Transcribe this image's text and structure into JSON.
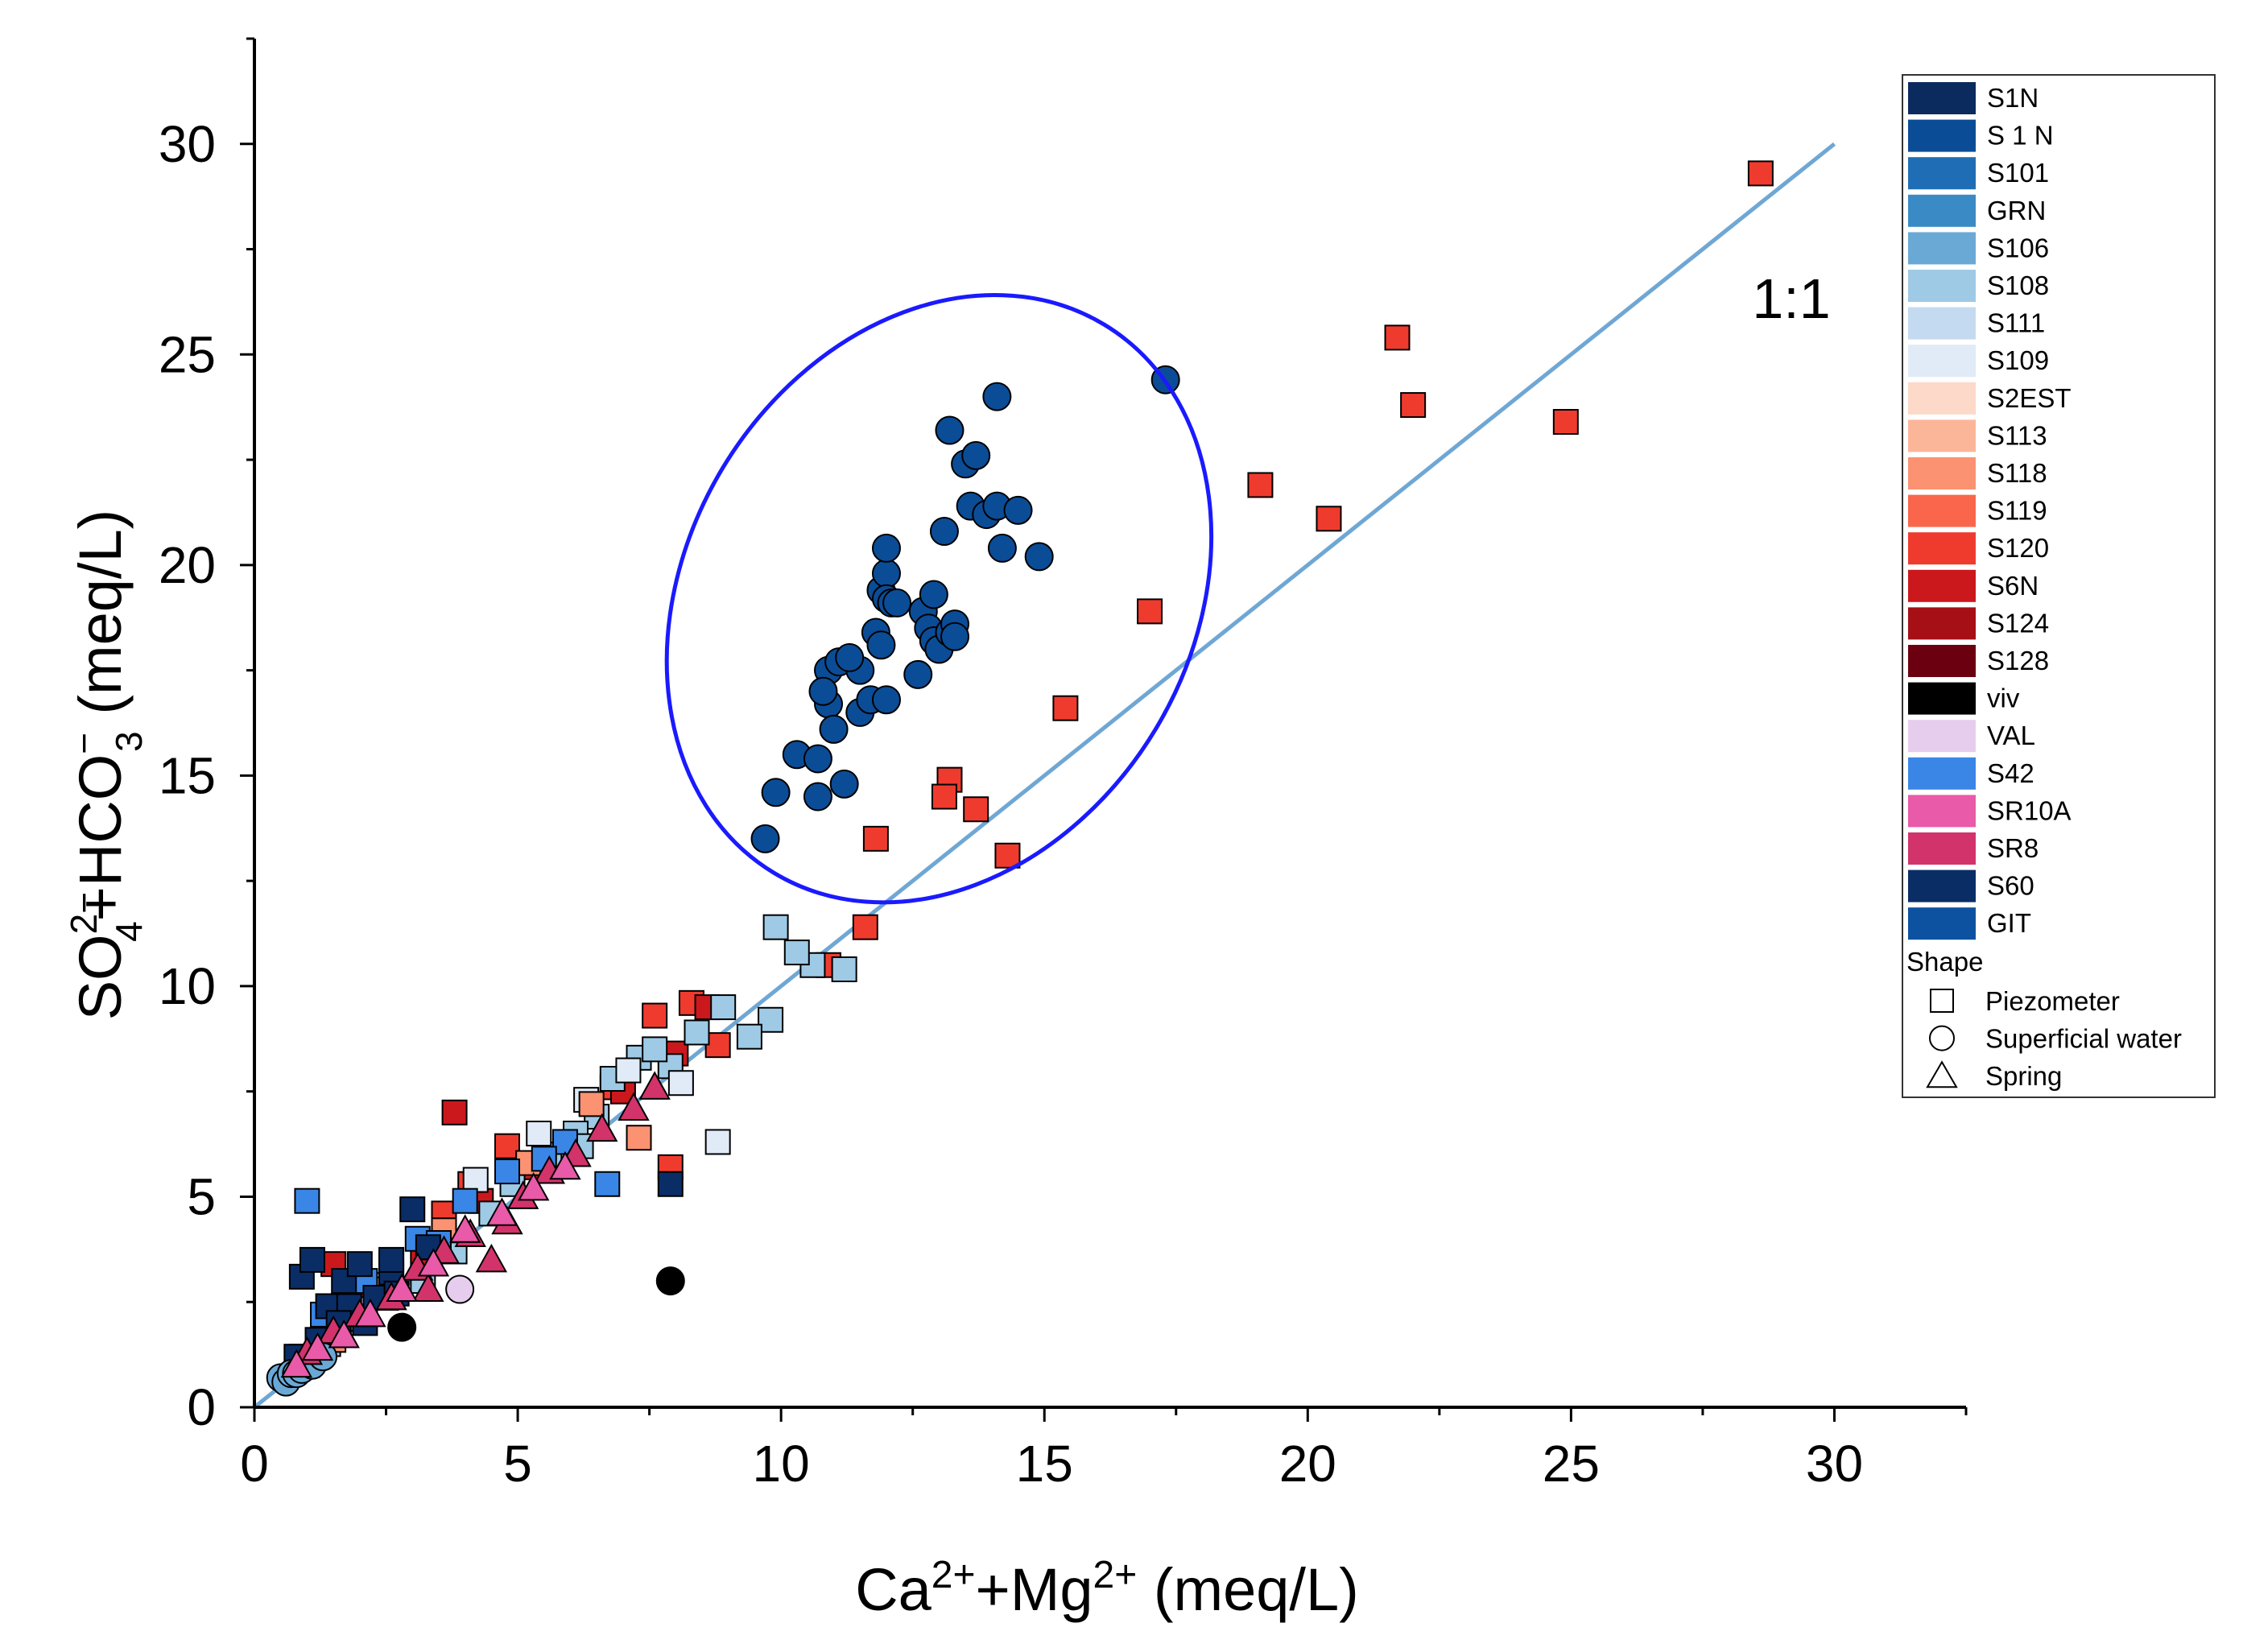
{
  "chart_data": {
    "type": "scatter",
    "xlabel": "Ca2++Mg2+ (meq/L)",
    "xlabel_parts": {
      "a": "Ca",
      "a_sup": "2+",
      "b": "+Mg",
      "b_sup": "2+",
      "unit": " (meq/L)"
    },
    "ylabel": "SO42−+HCO3− (meq/L)",
    "ylabel_parts": {
      "a": "SO",
      "a_sup": "2−",
      "a_sub": "4",
      "b": "+HCO",
      "b_sup": "−",
      "b_sub": "3",
      "unit": " (meq/L)"
    },
    "xlim": [
      0,
      32.5
    ],
    "ylim": [
      0,
      32.5
    ],
    "xticks": [
      "0",
      "5",
      "10",
      "15",
      "20",
      "25",
      "30"
    ],
    "yticks": [
      "0",
      "5",
      "10",
      "15",
      "20",
      "25",
      "30"
    ],
    "annotation_ratio": "1:1",
    "reference_line": {
      "x": [
        0,
        30
      ],
      "y": [
        0,
        30
      ],
      "color": "#6fa7d4"
    },
    "ellipse_highlight": {
      "cx": 13.0,
      "cy": 19.2,
      "rx": 4.8,
      "ry": 7.6,
      "angle_deg": 31,
      "color": "#1a1aff"
    },
    "legend": {
      "placement": "right",
      "items": [
        {
          "label": "S1N",
          "color": "#0b2a5e"
        },
        {
          "label": "S 1 N",
          "color": "#0b4c96"
        },
        {
          "label": "S101",
          "color": "#1f6eb5"
        },
        {
          "label": "GRN",
          "color": "#3a8ac6"
        },
        {
          "label": "S106",
          "color": "#6aa9d6"
        },
        {
          "label": "S108",
          "color": "#9ecae5"
        },
        {
          "label": "S111",
          "color": "#c4daf0"
        },
        {
          "label": "S109",
          "color": "#e0ebf7"
        },
        {
          "label": "S2EST",
          "color": "#fcd9c8"
        },
        {
          "label": "S113",
          "color": "#fbb69a"
        },
        {
          "label": "S118",
          "color": "#fb9272"
        },
        {
          "label": "S119",
          "color": "#f9664b"
        },
        {
          "label": "S120",
          "color": "#ef3b2e"
        },
        {
          "label": "S6N",
          "color": "#cb181d"
        },
        {
          "label": "S124",
          "color": "#a50f15"
        },
        {
          "label": "S128",
          "color": "#6b0010"
        },
        {
          "label": "viv",
          "color": "#000000"
        },
        {
          "label": "VAL",
          "color": "#e6cdee"
        },
        {
          "label": "S42",
          "color": "#3a86e6"
        },
        {
          "label": "SR10A",
          "color": "#e95aa8"
        },
        {
          "label": "SR8",
          "color": "#d2336a"
        },
        {
          "label": "S60",
          "color": "#0a2d66"
        },
        {
          "label": "GIT",
          "color": "#0d52a0"
        }
      ],
      "shape_title": "Shape",
      "shapes": [
        {
          "label": "Piezometer",
          "shape": "square"
        },
        {
          "label": "Superficial water",
          "shape": "circle"
        },
        {
          "label": "Spring",
          "shape": "triangle"
        }
      ]
    },
    "series": [
      {
        "group": "S1N",
        "shape": "circle",
        "color": "#0b4c96",
        "x": [
          9.7,
          9.9,
          10.3,
          10.7,
          10.7,
          10.9,
          10.9,
          11.0,
          11.2,
          11.1,
          11.5,
          11.5,
          11.7,
          11.8,
          11.9,
          11.9,
          12.0,
          12.0,
          12.0,
          12.0,
          12.1,
          12.2,
          12.6,
          12.7,
          12.8,
          12.9,
          12.9,
          13.0,
          13.1,
          13.2,
          13.2,
          13.3,
          13.3,
          13.5,
          13.6,
          13.7,
          13.9,
          14.1,
          14.1,
          14.2,
          14.5,
          14.9,
          17.3,
          10.8,
          11.3
        ],
        "y": [
          13.5,
          14.6,
          15.5,
          14.5,
          15.4,
          16.7,
          17.5,
          16.1,
          14.8,
          17.7,
          16.5,
          17.5,
          16.8,
          18.4,
          18.1,
          19.4,
          16.8,
          19.8,
          20.4,
          19.2,
          19.1,
          19.1,
          17.4,
          18.9,
          18.5,
          19.3,
          18.2,
          18.0,
          20.8,
          18.4,
          23.2,
          18.6,
          18.3,
          22.4,
          21.4,
          22.6,
          21.2,
          24.0,
          21.4,
          20.4,
          21.3,
          20.2,
          24.4,
          17.0,
          17.8
        ]
      },
      {
        "group": "S120",
        "shape": "square",
        "color": "#ef3b2e",
        "x": [
          28.6,
          21.7,
          22.0,
          24.9,
          19.1,
          20.4,
          17.0,
          15.4,
          13.2,
          13.1,
          13.7,
          11.8,
          14.3,
          11.6,
          10.9,
          8.8,
          8.3,
          7.9,
          7.6,
          6.8,
          4.8,
          4.1,
          3.6
        ],
        "y": [
          29.3,
          25.4,
          23.8,
          23.4,
          21.9,
          21.1,
          18.9,
          16.6,
          14.9,
          14.5,
          14.2,
          13.5,
          13.1,
          11.4,
          10.5,
          8.6,
          9.6,
          5.7,
          9.3,
          7.6,
          6.2,
          5.3,
          4.6
        ]
      },
      {
        "group": "S6N",
        "shape": "square",
        "color": "#cb181d",
        "x": [
          3.8,
          2.6,
          3.2,
          1.5,
          2.2,
          4.3,
          5.2,
          7.0,
          8.0,
          8.6
        ],
        "y": [
          7.0,
          3.4,
          3.6,
          3.4,
          2.9,
          4.9,
          5.7,
          7.5,
          8.4,
          9.5
        ]
      },
      {
        "group": "S108",
        "shape": "square",
        "color": "#9ecae5",
        "x": [
          9.9,
          10.6,
          11.2,
          9.8,
          9.4,
          8.9,
          8.4,
          7.9,
          7.3,
          6.8,
          6.5,
          6.1,
          5.6,
          4.9,
          4.5,
          3.8,
          3.2,
          2.5,
          2.0,
          1.4,
          0.9,
          10.3,
          7.6,
          6.2
        ],
        "y": [
          11.4,
          10.5,
          10.4,
          9.2,
          8.8,
          9.5,
          8.9,
          8.1,
          8.3,
          7.8,
          6.9,
          6.5,
          6.0,
          5.3,
          4.6,
          3.7,
          3.0,
          2.6,
          2.1,
          1.5,
          1.2,
          10.8,
          8.5,
          6.2
        ]
      },
      {
        "group": "S109",
        "shape": "square",
        "color": "#e0ebf7",
        "x": [
          8.8,
          8.1,
          7.1,
          6.3,
          5.4,
          4.2,
          3.3,
          2.4,
          1.6
        ],
        "y": [
          6.3,
          7.7,
          8.0,
          7.3,
          6.5,
          5.4,
          3.8,
          2.9,
          1.8
        ]
      },
      {
        "group": "S118",
        "shape": "square",
        "color": "#fb9272",
        "x": [
          7.3,
          6.4,
          5.2,
          3.6,
          2.3,
          1.5
        ],
        "y": [
          6.4,
          7.2,
          5.8,
          4.2,
          2.8,
          1.6
        ]
      },
      {
        "group": "S42",
        "shape": "square",
        "color": "#3a86e6",
        "x": [
          1.0,
          6.7,
          5.9,
          4.8,
          4.0,
          3.1,
          2.1,
          1.3,
          5.5,
          3.5
        ],
        "y": [
          4.9,
          5.3,
          6.3,
          5.6,
          4.9,
          4.0,
          3.0,
          2.2,
          5.9,
          3.9
        ]
      },
      {
        "group": "S60",
        "shape": "square",
        "color": "#0a2d66",
        "x": [
          0.9,
          1.1,
          1.4,
          1.7,
          2.0,
          2.3,
          2.6,
          3.0,
          1.8,
          2.6,
          2.1,
          0.8,
          1.2,
          1.6,
          2.7,
          3.3,
          1.0,
          7.9
        ],
        "y": [
          3.1,
          3.5,
          2.4,
          3.0,
          3.4,
          2.6,
          3.2,
          4.7,
          2.4,
          3.5,
          2.0,
          1.2,
          1.6,
          2.0,
          2.7,
          3.8,
          1.0,
          5.3
        ]
      },
      {
        "group": "S106",
        "shape": "circle",
        "color": "#6aa9d6",
        "x": [
          0.5,
          0.6,
          0.7,
          0.8,
          0.9,
          1.1,
          1.3
        ],
        "y": [
          0.7,
          0.6,
          0.8,
          0.8,
          0.9,
          1.0,
          1.2
        ]
      },
      {
        "group": "viv",
        "shape": "circle",
        "color": "#000000",
        "x": [
          2.8,
          7.9
        ],
        "y": [
          1.9,
          3.0
        ]
      },
      {
        "group": "VAL",
        "shape": "circle",
        "color": "#e6cdee",
        "x": [
          3.9
        ],
        "y": [
          2.8
        ]
      },
      {
        "group": "SR8",
        "shape": "triangle",
        "color": "#d2336a",
        "x": [
          1.0,
          1.5,
          2.0,
          2.6,
          3.1,
          3.6,
          4.1,
          4.5,
          5.1,
          5.6,
          6.1,
          6.6,
          7.2,
          7.6,
          3.3,
          4.8
        ],
        "y": [
          1.3,
          1.8,
          2.2,
          2.6,
          3.3,
          3.7,
          4.1,
          3.5,
          5.0,
          5.6,
          6.0,
          6.6,
          7.1,
          7.6,
          2.8,
          4.4
        ]
      },
      {
        "group": "SR10A",
        "shape": "triangle",
        "color": "#e95aa8",
        "x": [
          0.8,
          1.2,
          1.7,
          2.2,
          2.8,
          3.4,
          4.0,
          4.7,
          5.3,
          5.9
        ],
        "y": [
          1.0,
          1.4,
          1.7,
          2.2,
          2.8,
          3.4,
          4.2,
          4.6,
          5.2,
          5.7
        ]
      }
    ]
  }
}
